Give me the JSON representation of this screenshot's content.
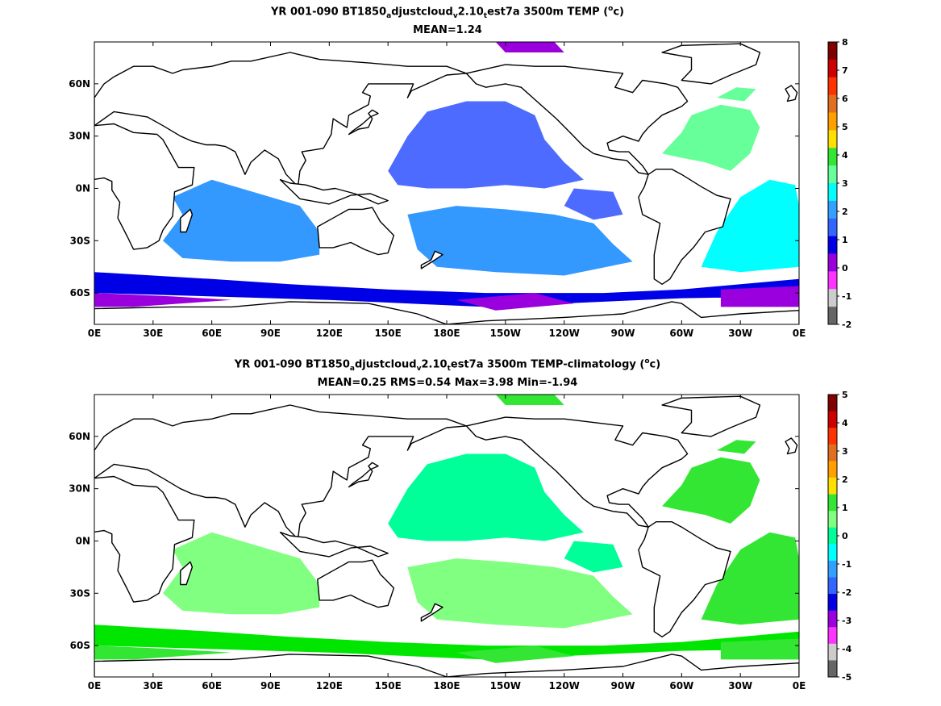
{
  "panels": [
    {
      "title_prefix": "YR 001-090 BT1850",
      "title_sub1": "a",
      "title_mid1": "djustcloud",
      "title_sub2": "v",
      "title_mid2": "2.10",
      "title_sub3": "t",
      "title_mid3": "est7a 3500m TEMP (",
      "title_sup": "o",
      "title_suffix": "c)",
      "stats": "MEAN=1.24",
      "colorbar": {
        "labels": [
          "8",
          "7",
          "6",
          "5",
          "4",
          "3",
          "2",
          "1",
          "0",
          "-1",
          "-2"
        ],
        "colors": [
          "#800000",
          "#cc0000",
          "#ff3300",
          "#e07020",
          "#ffa000",
          "#ffe000",
          "#33e633",
          "#66ff99",
          "#00ffff",
          "#33a0ff",
          "#3366ff",
          "#0000e6",
          "#9900dd",
          "#ff33ff",
          "#cccccc",
          "#666666"
        ]
      },
      "fill": {
        "ocean_main": "#4d6bff",
        "ocean_south": "#3399ff",
        "atlantic_n": "#66ff99",
        "atlantic_s": "#00ffff",
        "deep_south": "#0000e6",
        "polar": "#9900dd"
      }
    },
    {
      "title_prefix": "YR 001-090 BT1850",
      "title_sub1": "a",
      "title_mid1": "djustcloud",
      "title_sub2": "v",
      "title_mid2": "2.10",
      "title_sub3": "t",
      "title_mid3": "est7a 3500m TEMP-climatology (",
      "title_sup": "o",
      "title_suffix": "c)",
      "stats": "MEAN=0.25   RMS=0.54   Max=3.98   Min=-1.94",
      "colorbar": {
        "labels": [
          "5",
          "4",
          "3",
          "2",
          "1",
          "0",
          "-1",
          "-2",
          "-3",
          "-4",
          "-5"
        ],
        "colors": [
          "#800000",
          "#cc0000",
          "#ff3300",
          "#e07020",
          "#ffa000",
          "#ffe000",
          "#33e633",
          "#80ff80",
          "#00ff99",
          "#00ffff",
          "#33a0ff",
          "#3366ff",
          "#0000e6",
          "#9900dd",
          "#ff33ff",
          "#cccccc",
          "#666666"
        ]
      },
      "fill": {
        "ocean_main": "#00ff99",
        "ocean_south": "#80ff80",
        "atlantic_n": "#33e633",
        "atlantic_s": "#33e633",
        "deep_south": "#00e600",
        "polar": "#33e633"
      }
    }
  ],
  "axes": {
    "x_ticks": [
      "0E",
      "30E",
      "60E",
      "90E",
      "120E",
      "150E",
      "180E",
      "150W",
      "120W",
      "90W",
      "60W",
      "30W",
      "0E"
    ],
    "y_ticks": [
      "60N",
      "30N",
      "0N",
      "30S",
      "60S"
    ]
  }
}
